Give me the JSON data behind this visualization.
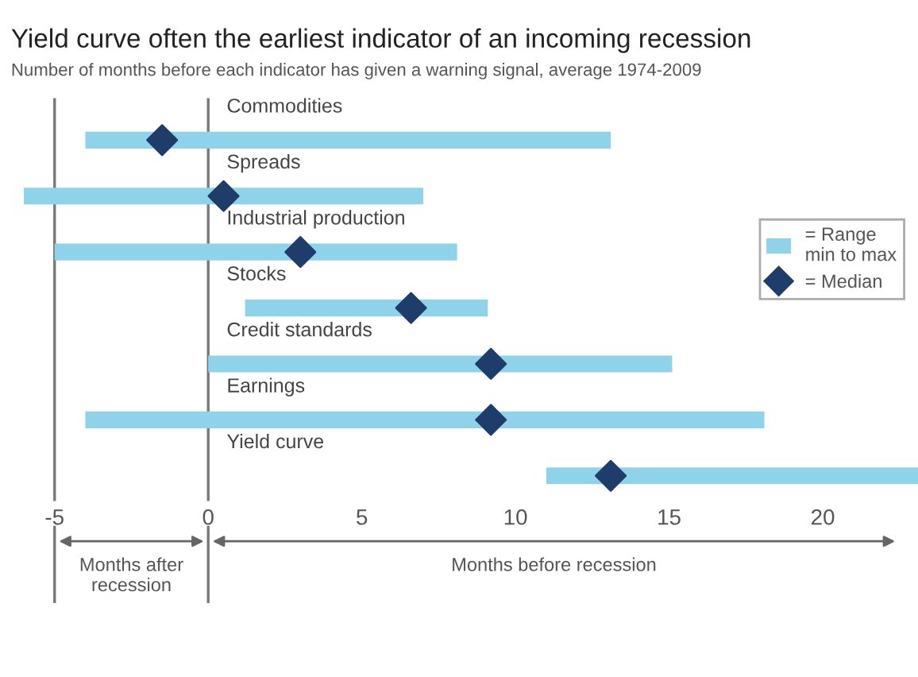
{
  "chart_data": {
    "type": "bar",
    "orientation": "horizontal",
    "title": "Yield curve often the earliest indicator of an incoming recession",
    "subtitle": "Number of months before each indicator has given a warning signal, average 1974-2009",
    "categories": [
      "Commodities",
      "Spreads",
      "Industrial production",
      "Stocks",
      "Credit standards",
      "Earnings",
      "Yield curve"
    ],
    "series": [
      {
        "name": "= Range\nmin to max",
        "color": "#8fd3ea",
        "base": [
          -4,
          -6,
          -5,
          1.2,
          0,
          -4,
          11
        ],
        "values": [
          17.1,
          13,
          13.1,
          7.9,
          15.1,
          22.1,
          12.1
        ]
      },
      {
        "name": "= Median",
        "type": "scatter",
        "color": "#1f3d6b",
        "x": [
          "Commodities",
          "Spreads",
          "Industrial production",
          "Stocks",
          "Credit standards",
          "Earnings",
          "Yield curve"
        ],
        "values": [
          -1.5,
          0.5,
          3,
          6.6,
          9.2,
          9.2,
          13.1
        ]
      }
    ],
    "xlim": [
      -6,
      23.1
    ],
    "xticks": [
      -5,
      0,
      5,
      10,
      15,
      20
    ],
    "ref_lines": [
      {
        "axis": "x",
        "value": -5,
        "color": "#777777"
      },
      {
        "axis": "x",
        "value": 0,
        "color": "#777777"
      }
    ],
    "annotations": [
      "Months after\nrecession",
      "Months before recession"
    ],
    "marker": "diamond",
    "legend": "right",
    "grid": false,
    "tick_labels": "x"
  }
}
